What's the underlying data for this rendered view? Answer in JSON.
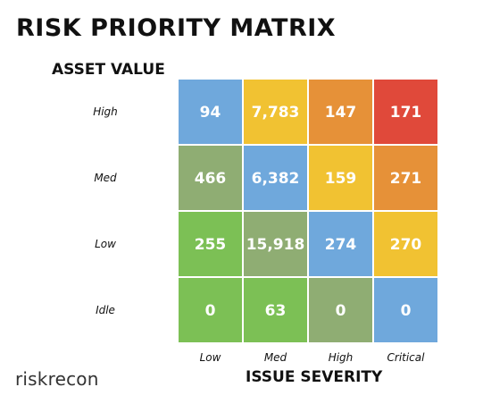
{
  "chart_data": {
    "type": "heatmap",
    "title": "RISK PRIORITY MATRIX",
    "ylabel": "ASSET VALUE",
    "xlabel": "ISSUE SEVERITY",
    "x_categories": [
      "Low",
      "Med",
      "High",
      "Critical"
    ],
    "y_categories": [
      "High",
      "Med",
      "Low",
      "Idle"
    ],
    "values": [
      [
        "94",
        "7,783",
        "147",
        "171"
      ],
      [
        "466",
        "6,382",
        "159",
        "271"
      ],
      [
        "255",
        "15,918",
        "274",
        "270"
      ],
      [
        "0",
        "63",
        "0",
        "0"
      ]
    ],
    "cell_colors": [
      [
        "#6fa8dc",
        "#f1c232",
        "#e69138",
        "#e0493a"
      ],
      [
        "#8fad73",
        "#6fa8dc",
        "#f1c232",
        "#e69138"
      ],
      [
        "#7cc055",
        "#8fad73",
        "#6fa8dc",
        "#f1c232"
      ],
      [
        "#7cc055",
        "#7cc055",
        "#8fad73",
        "#6fa8dc"
      ]
    ]
  },
  "brand": {
    "logo_text": "riskrecon",
    "color": "#333333"
  }
}
